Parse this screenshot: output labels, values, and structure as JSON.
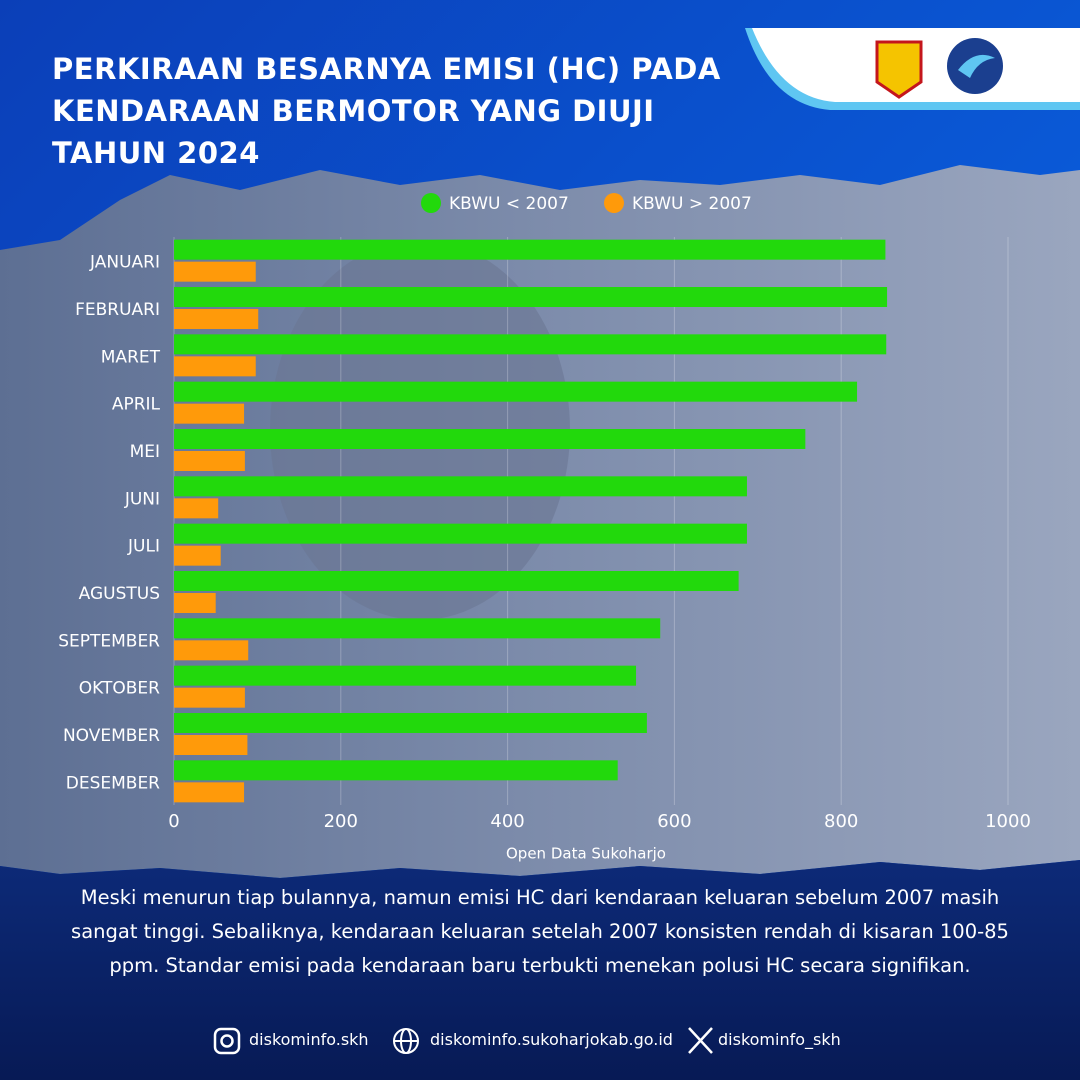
{
  "chart_data": {
    "type": "barh",
    "title": "PERKIRAAN BESARNYA EMISI (HC) PADA KENDARAAN BERMOTOR YANG DIUJI TAHUN 2024",
    "xlabel": "Open Data Sukoharjo",
    "categories": [
      "JANUARI",
      "FEBRUARI",
      "MARET",
      "APRIL",
      "MEI",
      "JUNI",
      "JULI",
      "AGUSTUS",
      "SEPTEMBER",
      "OKTOBER",
      "NOVEMBER",
      "DESEMBER"
    ],
    "series": [
      {
        "name": "KBWU < 2007",
        "color": "#22d90c",
        "values": [
          853,
          855,
          854,
          819,
          757,
          687,
          687,
          677,
          583,
          554,
          567,
          532
        ]
      },
      {
        "name": "KBWU > 2007",
        "color": "#ff9a0a",
        "values": [
          98,
          101,
          98,
          84,
          85,
          53,
          56,
          50,
          89,
          85,
          88,
          84
        ]
      }
    ],
    "xlim": [
      0,
      1000
    ],
    "xticks": [
      0,
      200,
      400,
      600,
      800,
      1000
    ],
    "grid": true,
    "legend": "top"
  },
  "description": "Meski menurun tiap bulannya, namun emisi HC dari kendaraan keluaran sebelum 2007 masih sangat tinggi. Sebaliknya, kendaraan keluaran setelah 2007 konsisten rendah di kisaran 100-85 ppm. Standar emisi pada kendaraan baru terbukti menekan polusi HC secara signifikan.",
  "footer": {
    "instagram": "diskominfo.skh",
    "website": "diskominfo.sukoharjokab.go.id",
    "x": "diskominfo_skh"
  }
}
